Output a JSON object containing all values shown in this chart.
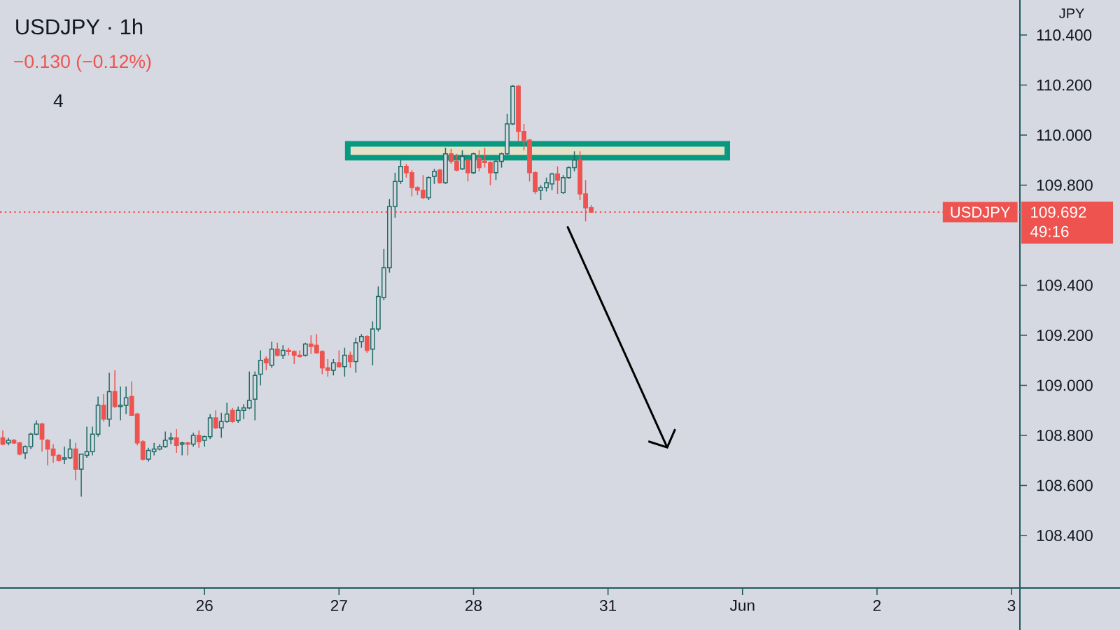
{
  "chart_data": {
    "type": "candlestick",
    "title": "USDJPY · 1h",
    "subtitle": "−0.130 (−0.12%)",
    "ylabel": "JPY",
    "categories": [
      null,
      null,
      null,
      null,
      null,
      null,
      null,
      null,
      null,
      null,
      null,
      null,
      null,
      null,
      null,
      null,
      null,
      null,
      null,
      null,
      null,
      null,
      null,
      null,
      null,
      null,
      null,
      null,
      null,
      null,
      null,
      null,
      null,
      null,
      null,
      null,
      "26",
      null,
      null,
      null,
      null,
      null,
      null,
      null,
      null,
      null,
      null,
      null,
      null,
      null,
      null,
      null,
      null,
      null,
      null,
      null,
      null,
      null,
      null,
      null,
      "27",
      null,
      null,
      null,
      null,
      null,
      null,
      null,
      null,
      null,
      null,
      null,
      null,
      null,
      null,
      null,
      null,
      null,
      null,
      null,
      null,
      null,
      null,
      null,
      "28",
      null,
      null,
      null,
      null,
      null,
      null,
      null,
      null,
      null,
      null,
      null,
      null,
      null,
      null,
      null,
      null,
      null,
      null,
      null,
      null,
      null,
      null,
      null,
      "31",
      null,
      null,
      null,
      null,
      null,
      null,
      null,
      null,
      null,
      null,
      null,
      null,
      null,
      null,
      null,
      null,
      null,
      null,
      null,
      null,
      null,
      null,
      null,
      "Jun",
      null,
      null,
      null,
      null,
      null,
      null,
      null,
      null,
      null,
      null,
      null,
      null,
      null,
      null,
      null,
      null,
      null,
      null,
      null,
      null,
      null,
      null,
      null,
      "2",
      null,
      null,
      null,
      null,
      null,
      null,
      null,
      null,
      null,
      null,
      null,
      null,
      null,
      null,
      null,
      null,
      null,
      null,
      null,
      null,
      null,
      null,
      null,
      "3",
      null
    ],
    "ohlc": [
      [
        108.79,
        108.82,
        108.76,
        108.765
      ],
      [
        108.77,
        108.79,
        108.76,
        108.78
      ],
      [
        108.78,
        108.785,
        108.765,
        108.77
      ],
      [
        108.77,
        108.775,
        108.72,
        108.725
      ],
      [
        108.73,
        108.76,
        108.705,
        108.755
      ],
      [
        108.755,
        108.81,
        108.745,
        108.805
      ],
      [
        108.805,
        108.86,
        108.8,
        108.845
      ],
      [
        108.845,
        108.85,
        108.735,
        108.785
      ],
      [
        108.78,
        108.785,
        108.68,
        108.745
      ],
      [
        108.745,
        108.765,
        108.69,
        108.72
      ],
      [
        108.72,
        108.725,
        108.695,
        108.7
      ],
      [
        108.705,
        108.755,
        108.685,
        108.71
      ],
      [
        108.71,
        108.785,
        108.705,
        108.745
      ],
      [
        108.745,
        108.77,
        108.62,
        108.665
      ],
      [
        108.665,
        108.725,
        108.555,
        108.725
      ],
      [
        108.72,
        108.835,
        108.71,
        108.735
      ],
      [
        108.735,
        108.835,
        108.72,
        108.805
      ],
      [
        108.805,
        108.955,
        108.795,
        108.92
      ],
      [
        108.92,
        108.965,
        108.855,
        108.865
      ],
      [
        108.865,
        109.05,
        108.835,
        108.975
      ],
      [
        108.975,
        109.06,
        108.91,
        108.915
      ],
      [
        108.915,
        108.995,
        108.86,
        108.92
      ],
      [
        108.92,
        108.995,
        108.885,
        108.95
      ],
      [
        108.955,
        109.015,
        108.88,
        108.88
      ],
      [
        108.885,
        108.89,
        108.76,
        108.77
      ],
      [
        108.775,
        108.78,
        108.7,
        108.705
      ],
      [
        108.705,
        108.75,
        108.695,
        108.74
      ],
      [
        108.735,
        108.77,
        108.72,
        108.745
      ],
      [
        108.745,
        108.765,
        108.74,
        108.755
      ],
      [
        108.755,
        108.815,
        108.75,
        108.78
      ],
      [
        108.785,
        108.81,
        108.765,
        108.79
      ],
      [
        108.79,
        108.825,
        108.73,
        108.76
      ],
      [
        108.765,
        108.775,
        108.72,
        108.77
      ],
      [
        108.77,
        108.775,
        108.72,
        108.765
      ],
      [
        108.765,
        108.81,
        108.755,
        108.8
      ],
      [
        108.8,
        108.82,
        108.75,
        108.775
      ],
      [
        108.78,
        108.8,
        108.755,
        108.795
      ],
      [
        108.795,
        108.885,
        108.785,
        108.87
      ],
      [
        108.87,
        108.9,
        108.825,
        108.83
      ],
      [
        108.83,
        108.89,
        108.79,
        108.855
      ],
      [
        108.855,
        108.93,
        108.85,
        108.885
      ],
      [
        108.9,
        108.91,
        108.85,
        108.855
      ],
      [
        108.86,
        108.915,
        108.85,
        108.9
      ],
      [
        108.9,
        108.925,
        108.865,
        108.91
      ],
      [
        108.91,
        109.055,
        108.905,
        108.94
      ],
      [
        108.945,
        109.055,
        108.86,
        109.04
      ],
      [
        109.045,
        109.14,
        109.0,
        109.1
      ],
      [
        109.105,
        109.115,
        109.06,
        109.09
      ],
      [
        109.08,
        109.175,
        109.07,
        109.145
      ],
      [
        109.145,
        109.17,
        109.115,
        109.12
      ],
      [
        109.12,
        109.16,
        109.105,
        109.14
      ],
      [
        109.14,
        109.15,
        109.12,
        109.135
      ],
      [
        109.135,
        109.14,
        109.085,
        109.12
      ],
      [
        109.12,
        109.14,
        109.11,
        109.115
      ],
      [
        109.12,
        109.17,
        109.115,
        109.165
      ],
      [
        109.165,
        109.2,
        109.125,
        109.155
      ],
      [
        109.16,
        109.205,
        109.125,
        109.13
      ],
      [
        109.135,
        109.14,
        109.045,
        109.07
      ],
      [
        109.07,
        109.105,
        109.035,
        109.06
      ],
      [
        109.06,
        109.105,
        109.04,
        109.09
      ],
      [
        109.09,
        109.14,
        109.07,
        109.075
      ],
      [
        109.075,
        109.15,
        109.035,
        109.12
      ],
      [
        109.12,
        109.135,
        109.07,
        109.095
      ],
      [
        109.095,
        109.19,
        109.05,
        109.17
      ],
      [
        109.175,
        109.205,
        109.15,
        109.195
      ],
      [
        109.195,
        109.2,
        109.13,
        109.14
      ],
      [
        109.145,
        109.255,
        109.08,
        109.225
      ],
      [
        109.225,
        109.395,
        109.215,
        109.355
      ],
      [
        109.35,
        109.545,
        109.34,
        109.47
      ],
      [
        109.47,
        109.745,
        109.45,
        109.715
      ],
      [
        109.715,
        109.85,
        109.67,
        109.815
      ],
      [
        109.815,
        109.9,
        109.805,
        109.875
      ],
      [
        109.875,
        109.885,
        109.83,
        109.85
      ],
      [
        109.85,
        109.86,
        109.755,
        109.79
      ],
      [
        109.79,
        109.795,
        109.76,
        109.78
      ],
      [
        109.78,
        109.84,
        109.745,
        109.75
      ],
      [
        109.75,
        109.835,
        109.74,
        109.83
      ],
      [
        109.835,
        109.865,
        109.805,
        109.855
      ],
      [
        109.86,
        109.865,
        109.805,
        109.81
      ],
      [
        109.81,
        109.95,
        109.805,
        109.925
      ],
      [
        109.925,
        109.945,
        109.885,
        109.895
      ],
      [
        109.895,
        109.925,
        109.855,
        109.86
      ],
      [
        109.865,
        109.94,
        109.86,
        109.915
      ],
      [
        109.9,
        109.905,
        109.815,
        109.85
      ],
      [
        109.85,
        109.93,
        109.845,
        109.925
      ],
      [
        109.91,
        109.94,
        109.855,
        109.87
      ],
      [
        109.895,
        109.95,
        109.87,
        109.89
      ],
      [
        109.89,
        109.895,
        109.8,
        109.85
      ],
      [
        109.85,
        109.9,
        109.82,
        109.895
      ],
      [
        109.895,
        109.93,
        109.87,
        109.925
      ],
      [
        109.925,
        110.085,
        109.92,
        110.045
      ],
      [
        110.045,
        110.2,
        110.04,
        110.195
      ],
      [
        110.195,
        110.2,
        109.975,
        110.015
      ],
      [
        110.015,
        110.045,
        109.94,
        109.98
      ],
      [
        109.98,
        109.985,
        109.815,
        109.85
      ],
      [
        109.85,
        109.855,
        109.765,
        109.775
      ],
      [
        109.78,
        109.8,
        109.74,
        109.79
      ],
      [
        109.79,
        109.83,
        109.775,
        109.81
      ],
      [
        109.805,
        109.85,
        109.78,
        109.845
      ],
      [
        109.845,
        109.875,
        109.765,
        109.82
      ],
      [
        109.77,
        109.84,
        109.765,
        109.83
      ],
      [
        109.83,
        109.875,
        109.825,
        109.87
      ],
      [
        109.87,
        109.935,
        109.855,
        109.9
      ],
      [
        109.9,
        109.935,
        109.74,
        109.765
      ],
      [
        109.765,
        109.82,
        109.655,
        109.71
      ],
      [
        109.71,
        109.72,
        109.69,
        109.692
      ],
      null,
      null,
      null,
      null,
      null,
      null,
      null,
      null,
      null,
      null,
      null,
      null,
      null,
      null,
      null,
      null,
      null,
      null,
      null,
      null,
      null,
      null,
      null,
      null,
      null,
      null,
      null,
      null,
      null,
      null,
      null,
      null,
      null,
      null,
      null,
      null,
      null,
      null,
      null,
      null,
      null,
      null,
      null,
      null,
      null,
      null,
      null,
      null,
      null,
      null,
      null,
      null,
      null,
      null,
      null,
      null,
      null,
      null,
      null,
      null,
      null,
      null,
      null,
      null,
      null,
      null,
      null,
      null,
      null,
      null,
      null,
      null,
      null,
      null,
      null,
      null
    ],
    "colors": [
      "#ef5350",
      "#1e6a65",
      "#ef5350",
      "#ef5350",
      "#1e6a65",
      "#1e6a65",
      "#1e6a65",
      "#ef5350",
      "#ef5350",
      "#ef5350",
      "#ef5350",
      "#1e6a65",
      "#1e6a65",
      "#ef5350",
      "#1e6a65",
      "#1e6a65",
      "#1e6a65",
      "#1e6a65",
      "#ef5350",
      "#1e6a65",
      "#ef5350",
      "#1e6a65",
      "#1e6a65",
      "#ef5350",
      "#ef5350",
      "#ef5350",
      "#1e6a65",
      "#1e6a65",
      "#1e6a65",
      "#1e6a65",
      "#1e6a65",
      "#ef5350",
      "#1e6a65",
      "#ef5350",
      "#1e6a65",
      "#ef5350",
      "#1e6a65",
      "#1e6a65",
      "#ef5350",
      "#1e6a65",
      "#1e6a65",
      "#ef5350",
      "#1e6a65",
      "#1e6a65",
      "#1e6a65",
      "#1e6a65",
      "#1e6a65",
      "#ef5350",
      "#1e6a65",
      "#ef5350",
      "#1e6a65",
      "#ef5350",
      "#ef5350",
      "#ef5350",
      "#1e6a65",
      "#ef5350",
      "#ef5350",
      "#ef5350",
      "#ef5350",
      "#1e6a65",
      "#ef5350",
      "#1e6a65",
      "#ef5350",
      "#1e6a65",
      "#1e6a65",
      "#ef5350",
      "#1e6a65",
      "#1e6a65",
      "#1e6a65",
      "#1e6a65",
      "#1e6a65",
      "#1e6a65",
      "#ef5350",
      "#ef5350",
      "#ef5350",
      "#ef5350",
      "#1e6a65",
      "#1e6a65",
      "#ef5350",
      "#1e6a65",
      "#ef5350",
      "#ef5350",
      "#1e6a65",
      "#ef5350",
      "#1e6a65",
      "#ef5350",
      "#ef5350",
      "#ef5350",
      "#1e6a65",
      "#1e6a65",
      "#1e6a65",
      "#1e6a65",
      "#ef5350",
      "#ef5350",
      "#ef5350",
      "#ef5350",
      "#1e6a65",
      "#1e6a65",
      "#1e6a65",
      "#ef5350",
      "#1e6a65",
      "#1e6a65",
      "#1e6a65",
      "#ef5350",
      "#ef5350",
      "#ef5350",
      null,
      null,
      null,
      null,
      null,
      null,
      null,
      null,
      null,
      null,
      null,
      null,
      null,
      null,
      null,
      null,
      null,
      null,
      null,
      null,
      null,
      null,
      null,
      null,
      null,
      null,
      null,
      null,
      null,
      null,
      null,
      null,
      null,
      null,
      null,
      null,
      null,
      null,
      null,
      null,
      null,
      null,
      null,
      null,
      null,
      null,
      null,
      null,
      null,
      null,
      null,
      null,
      null,
      null,
      null,
      null,
      null,
      null,
      null,
      null,
      null,
      null,
      null,
      null,
      null,
      null,
      null,
      null,
      null,
      null,
      null,
      null,
      null,
      null,
      null,
      null
    ],
    "ylim": [
      108.19,
      110.54
    ],
    "yticks": [
      {
        "value": 108.4,
        "label": "108.400"
      },
      {
        "value": 108.6,
        "label": "108.600"
      },
      {
        "value": 108.8,
        "label": "108.800"
      },
      {
        "value": 109.0,
        "label": "109.000"
      },
      {
        "value": 109.2,
        "label": "109.200"
      },
      {
        "value": 109.4,
        "label": "109.400"
      },
      {
        "value": 109.8,
        "label": "109.800"
      },
      {
        "value": 110.0,
        "label": "110.000"
      },
      {
        "value": 110.2,
        "label": "110.200"
      },
      {
        "value": 110.4,
        "label": "110.400"
      }
    ],
    "ref_lines": [
      {
        "axis": "y",
        "value": 109.692,
        "label": "USDJPY",
        "color": "#ef5350",
        "line_style": "dotted"
      }
    ],
    "bands": [
      {
        "axis": "y",
        "from": 109.91,
        "to": 109.965,
        "color": "#089981"
      }
    ],
    "annotations": [
      "4",
      "109.692",
      "49:16"
    ]
  }
}
